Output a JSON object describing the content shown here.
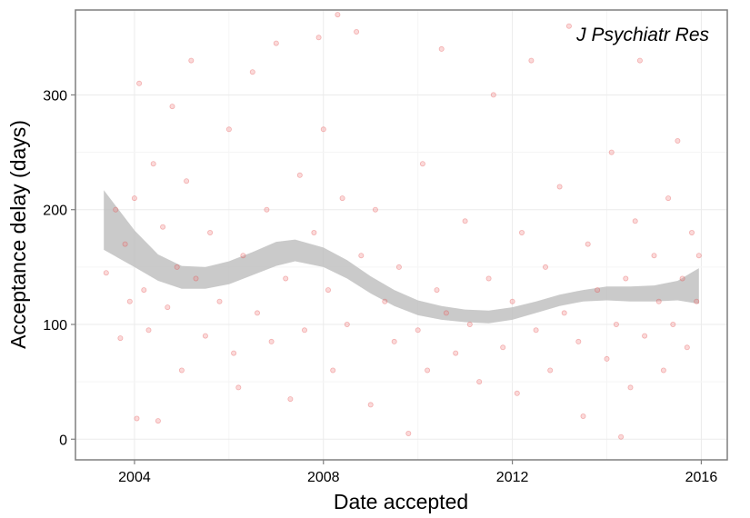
{
  "chart_data": {
    "type": "scatter",
    "annotation": "J Psychiatr Res",
    "xlabel": "Date accepted",
    "ylabel": "Acceptance delay (days)",
    "xlim": [
      2002.75,
      2016.55
    ],
    "ylim": [
      -18,
      374
    ],
    "x_ticks": [
      2004,
      2008,
      2012,
      2016
    ],
    "x_tick_labels": [
      "2004",
      "2008",
      "2012",
      "2016"
    ],
    "y_ticks": [
      0,
      100,
      200,
      300
    ],
    "y_tick_labels": [
      "0",
      "100",
      "200",
      "300"
    ],
    "grid": true,
    "point_color": "#f28080",
    "band_color": "#bdbdbd",
    "smooth_band": {
      "x": [
        2003.35,
        2004.0,
        2004.5,
        2005.0,
        2005.5,
        2006.0,
        2006.5,
        2007.0,
        2007.4,
        2008.0,
        2008.5,
        2009.0,
        2009.5,
        2010.0,
        2010.5,
        2011.0,
        2011.5,
        2012.0,
        2012.5,
        2013.0,
        2013.5,
        2014.0,
        2014.5,
        2015.0,
        2015.5,
        2015.95
      ],
      "lower": [
        165,
        150,
        138,
        131,
        131,
        135,
        143,
        151,
        155,
        150,
        140,
        127,
        116,
        108,
        104,
        102,
        101,
        104,
        110,
        116,
        120,
        121,
        120,
        120,
        121,
        118
      ],
      "upper": [
        217,
        182,
        161,
        151,
        150,
        155,
        163,
        172,
        174,
        167,
        156,
        142,
        130,
        121,
        116,
        113,
        112,
        115,
        120,
        126,
        130,
        133,
        133,
        134,
        138,
        149
      ]
    },
    "points": [
      {
        "x": 2003.4,
        "y": 145
      },
      {
        "x": 2003.6,
        "y": 200
      },
      {
        "x": 2003.7,
        "y": 88
      },
      {
        "x": 2003.8,
        "y": 170
      },
      {
        "x": 2003.9,
        "y": 120
      },
      {
        "x": 2004.0,
        "y": 210
      },
      {
        "x": 2004.05,
        "y": 18
      },
      {
        "x": 2004.1,
        "y": 310
      },
      {
        "x": 2004.2,
        "y": 130
      },
      {
        "x": 2004.3,
        "y": 95
      },
      {
        "x": 2004.4,
        "y": 240
      },
      {
        "x": 2004.5,
        "y": 16
      },
      {
        "x": 2004.6,
        "y": 185
      },
      {
        "x": 2004.7,
        "y": 115
      },
      {
        "x": 2004.8,
        "y": 290
      },
      {
        "x": 2004.9,
        "y": 150
      },
      {
        "x": 2005.0,
        "y": 60
      },
      {
        "x": 2005.1,
        "y": 225
      },
      {
        "x": 2005.2,
        "y": 330
      },
      {
        "x": 2005.3,
        "y": 140
      },
      {
        "x": 2005.5,
        "y": 90
      },
      {
        "x": 2005.6,
        "y": 180
      },
      {
        "x": 2005.8,
        "y": 120
      },
      {
        "x": 2006.0,
        "y": 270
      },
      {
        "x": 2006.1,
        "y": 75
      },
      {
        "x": 2006.2,
        "y": 45
      },
      {
        "x": 2006.3,
        "y": 160
      },
      {
        "x": 2006.5,
        "y": 320
      },
      {
        "x": 2006.6,
        "y": 110
      },
      {
        "x": 2006.8,
        "y": 200
      },
      {
        "x": 2006.9,
        "y": 85
      },
      {
        "x": 2007.0,
        "y": 345
      },
      {
        "x": 2007.2,
        "y": 140
      },
      {
        "x": 2007.3,
        "y": 35
      },
      {
        "x": 2007.5,
        "y": 230
      },
      {
        "x": 2007.6,
        "y": 95
      },
      {
        "x": 2007.8,
        "y": 180
      },
      {
        "x": 2007.9,
        "y": 350
      },
      {
        "x": 2008.0,
        "y": 270
      },
      {
        "x": 2008.1,
        "y": 130
      },
      {
        "x": 2008.2,
        "y": 60
      },
      {
        "x": 2008.3,
        "y": 370
      },
      {
        "x": 2008.4,
        "y": 210
      },
      {
        "x": 2008.5,
        "y": 100
      },
      {
        "x": 2008.7,
        "y": 355
      },
      {
        "x": 2008.8,
        "y": 160
      },
      {
        "x": 2009.0,
        "y": 30
      },
      {
        "x": 2009.1,
        "y": 200
      },
      {
        "x": 2009.3,
        "y": 120
      },
      {
        "x": 2009.5,
        "y": 85
      },
      {
        "x": 2009.6,
        "y": 150
      },
      {
        "x": 2009.8,
        "y": 5
      },
      {
        "x": 2010.0,
        "y": 95
      },
      {
        "x": 2010.1,
        "y": 240
      },
      {
        "x": 2010.2,
        "y": 60
      },
      {
        "x": 2010.4,
        "y": 130
      },
      {
        "x": 2010.5,
        "y": 340
      },
      {
        "x": 2010.6,
        "y": 110
      },
      {
        "x": 2010.8,
        "y": 75
      },
      {
        "x": 2011.0,
        "y": 190
      },
      {
        "x": 2011.1,
        "y": 100
      },
      {
        "x": 2011.3,
        "y": 50
      },
      {
        "x": 2011.5,
        "y": 140
      },
      {
        "x": 2011.6,
        "y": 300
      },
      {
        "x": 2011.8,
        "y": 80
      },
      {
        "x": 2012.0,
        "y": 120
      },
      {
        "x": 2012.1,
        "y": 40
      },
      {
        "x": 2012.2,
        "y": 180
      },
      {
        "x": 2012.4,
        "y": 330
      },
      {
        "x": 2012.5,
        "y": 95
      },
      {
        "x": 2012.7,
        "y": 150
      },
      {
        "x": 2012.8,
        "y": 60
      },
      {
        "x": 2013.0,
        "y": 220
      },
      {
        "x": 2013.1,
        "y": 110
      },
      {
        "x": 2013.2,
        "y": 360
      },
      {
        "x": 2013.4,
        "y": 85
      },
      {
        "x": 2013.5,
        "y": 20
      },
      {
        "x": 2013.6,
        "y": 170
      },
      {
        "x": 2013.8,
        "y": 130
      },
      {
        "x": 2014.0,
        "y": 70
      },
      {
        "x": 2014.1,
        "y": 250
      },
      {
        "x": 2014.2,
        "y": 100
      },
      {
        "x": 2014.3,
        "y": 2
      },
      {
        "x": 2014.4,
        "y": 140
      },
      {
        "x": 2014.5,
        "y": 45
      },
      {
        "x": 2014.6,
        "y": 190
      },
      {
        "x": 2014.7,
        "y": 330
      },
      {
        "x": 2014.8,
        "y": 90
      },
      {
        "x": 2015.0,
        "y": 160
      },
      {
        "x": 2015.1,
        "y": 120
      },
      {
        "x": 2015.2,
        "y": 60
      },
      {
        "x": 2015.3,
        "y": 210
      },
      {
        "x": 2015.4,
        "y": 100
      },
      {
        "x": 2015.5,
        "y": 260
      },
      {
        "x": 2015.6,
        "y": 140
      },
      {
        "x": 2015.7,
        "y": 80
      },
      {
        "x": 2015.8,
        "y": 180
      },
      {
        "x": 2015.9,
        "y": 120
      },
      {
        "x": 2015.95,
        "y": 160
      }
    ]
  }
}
